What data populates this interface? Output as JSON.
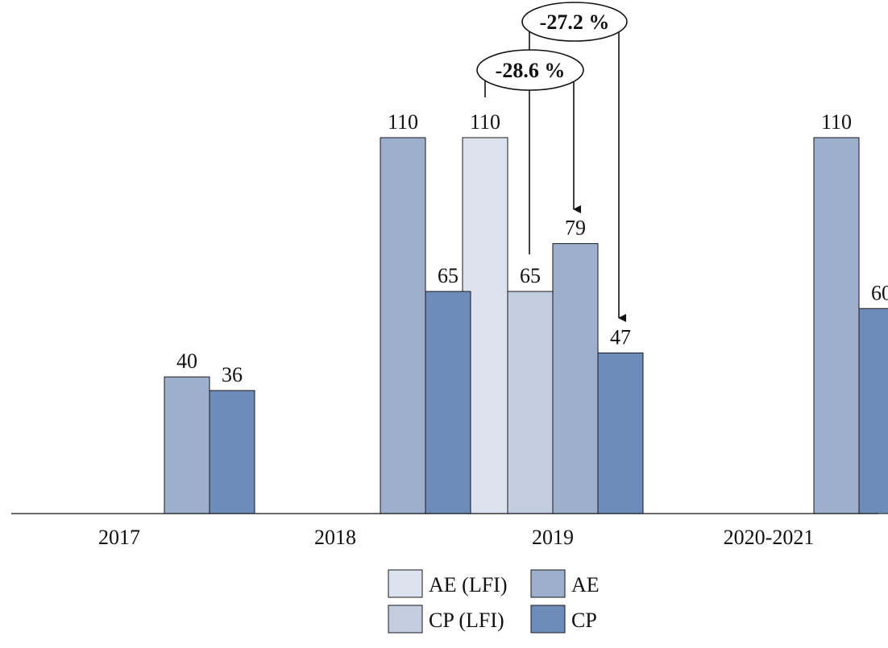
{
  "chart_data": {
    "type": "bar",
    "title": "",
    "xlabel": "",
    "ylabel": "",
    "ylim": [
      0,
      110
    ],
    "grid": false,
    "legend_position": "bottom",
    "categories": [
      "2017",
      "2018",
      "2019",
      "2020-2021"
    ],
    "series": [
      {
        "name": "AE (LFI)",
        "color": "#dde3ee",
        "values": [
          null,
          null,
          110,
          null
        ]
      },
      {
        "name": "CP (LFI)",
        "color": "#c3cde0",
        "values": [
          null,
          null,
          65,
          null
        ]
      },
      {
        "name": "AE",
        "color": "#9dafcc",
        "values": [
          40,
          110,
          79,
          110
        ]
      },
      {
        "name": "CP",
        "color": "#6d8cb9",
        "values": [
          36,
          65,
          47,
          60
        ]
      }
    ],
    "legend_order": [
      "AE (LFI)",
      "AE",
      "CP (LFI)",
      "CP"
    ],
    "annotations": [
      {
        "text": "-28.6 %",
        "from_series": "AE (LFI)",
        "to_series": "AE",
        "category": "2019"
      },
      {
        "text": "-27.2 %",
        "from_series": "CP (LFI)",
        "to_series": "CP",
        "category": "2019"
      }
    ]
  }
}
